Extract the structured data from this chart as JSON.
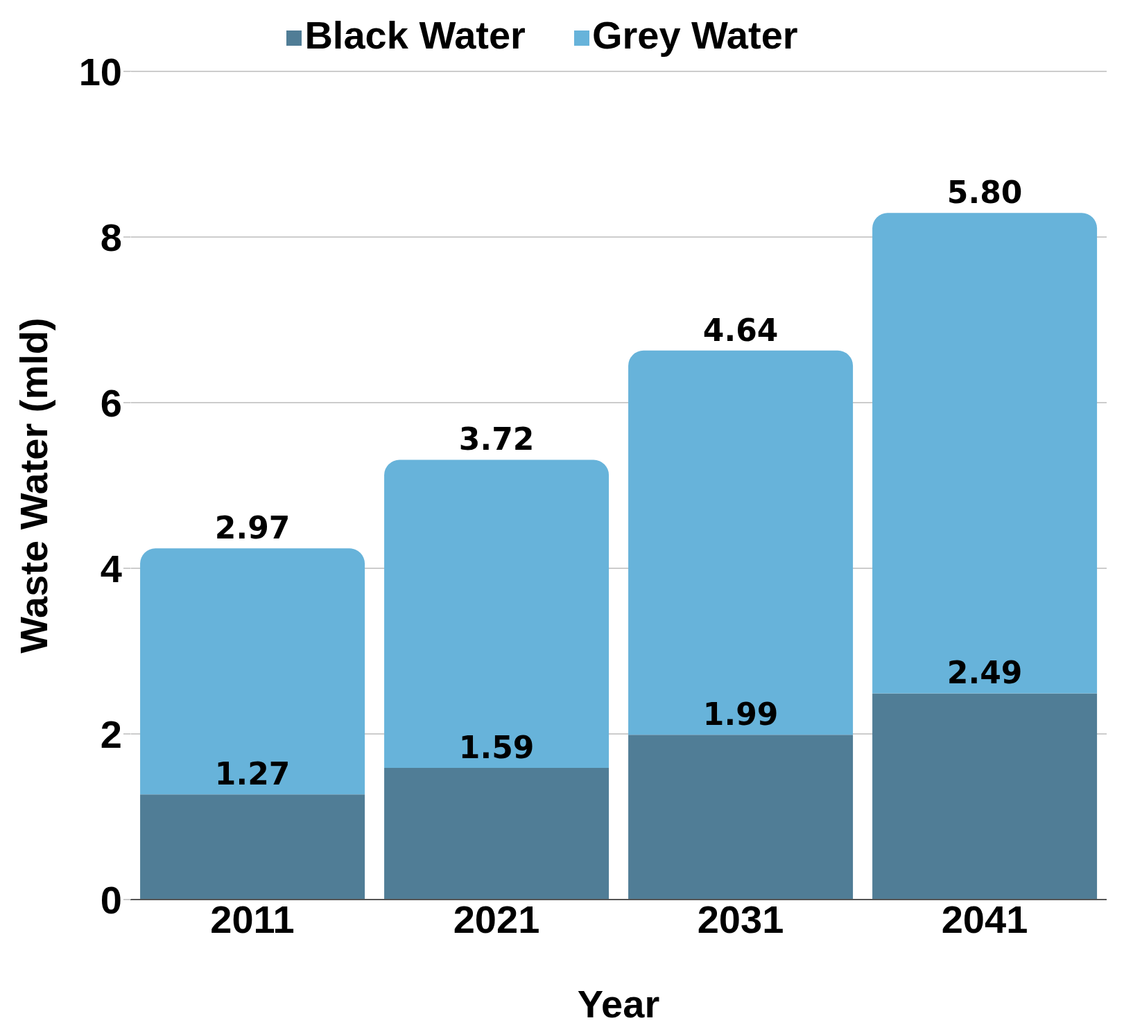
{
  "chart_data": {
    "type": "bar",
    "stacked": true,
    "xlabel": "Year",
    "ylabel": "Waste Water (mld)",
    "categories": [
      "2011",
      "2021",
      "2031",
      "2041"
    ],
    "series": [
      {
        "name": "Black Water",
        "color": "#507d96",
        "values": [
          1.27,
          1.59,
          1.99,
          2.49
        ],
        "value_labels": [
          "1.27",
          "1.59",
          "1.99",
          "2.49"
        ]
      },
      {
        "name": "Grey Water",
        "color": "#67b3da",
        "values": [
          2.97,
          3.72,
          4.64,
          5.8
        ],
        "value_labels": [
          "2.97",
          "3.72",
          "4.64",
          "5.80"
        ]
      }
    ],
    "ylim": [
      0,
      10
    ],
    "yticks": [
      0,
      2,
      4,
      6,
      8,
      10
    ],
    "grid": "y",
    "legend": "top"
  }
}
